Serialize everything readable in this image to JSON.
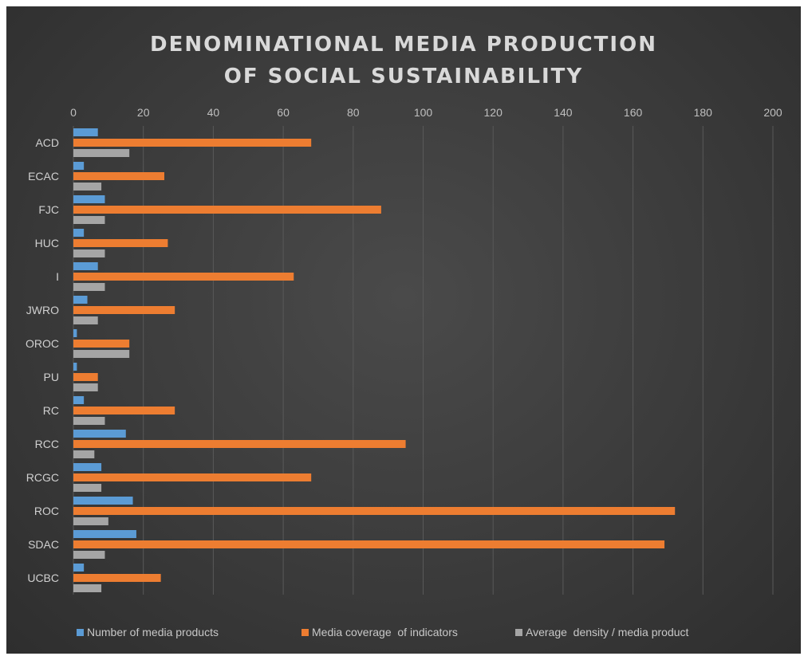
{
  "colors": {
    "number": "#5b9bd5",
    "coverage": "#ed7d31",
    "density": "#a5a5a5",
    "grid": "#595959"
  },
  "chart_data": {
    "type": "bar",
    "orientation": "horizontal",
    "title_lines": [
      "DENOMINATIONAL MEDIA PRODUCTION",
      "OF SOCIAL SUSTAINABILITY"
    ],
    "xlabel": "",
    "ylabel": "",
    "xlim": [
      0,
      200
    ],
    "x_ticks": [
      0,
      20,
      40,
      60,
      80,
      100,
      120,
      140,
      160,
      180,
      200
    ],
    "x_axis_position": "top",
    "grid": true,
    "legend_position": "bottom",
    "categories": [
      "ACD",
      "ECAC",
      "FJC",
      "HUC",
      "I",
      "JWRO",
      "OROC",
      "PU",
      "RC",
      "RCC",
      "RCGC",
      "ROC",
      "SDAC",
      "UCBC"
    ],
    "series": [
      {
        "name": "Number of media products",
        "color": "#5b9bd5",
        "values": [
          7,
          3,
          9,
          3,
          7,
          4,
          1,
          1,
          3,
          15,
          8,
          17,
          18,
          3
        ]
      },
      {
        "name": "Media coverage  of indicators",
        "color": "#ed7d31",
        "values": [
          68,
          26,
          88,
          27,
          63,
          29,
          16,
          7,
          29,
          95,
          68,
          172,
          169,
          25
        ]
      },
      {
        "name": "Average  density / media product",
        "color": "#a5a5a5",
        "values": [
          16,
          8,
          9,
          9,
          9,
          7,
          16,
          7,
          9,
          6,
          8,
          10,
          9,
          8
        ]
      }
    ]
  }
}
